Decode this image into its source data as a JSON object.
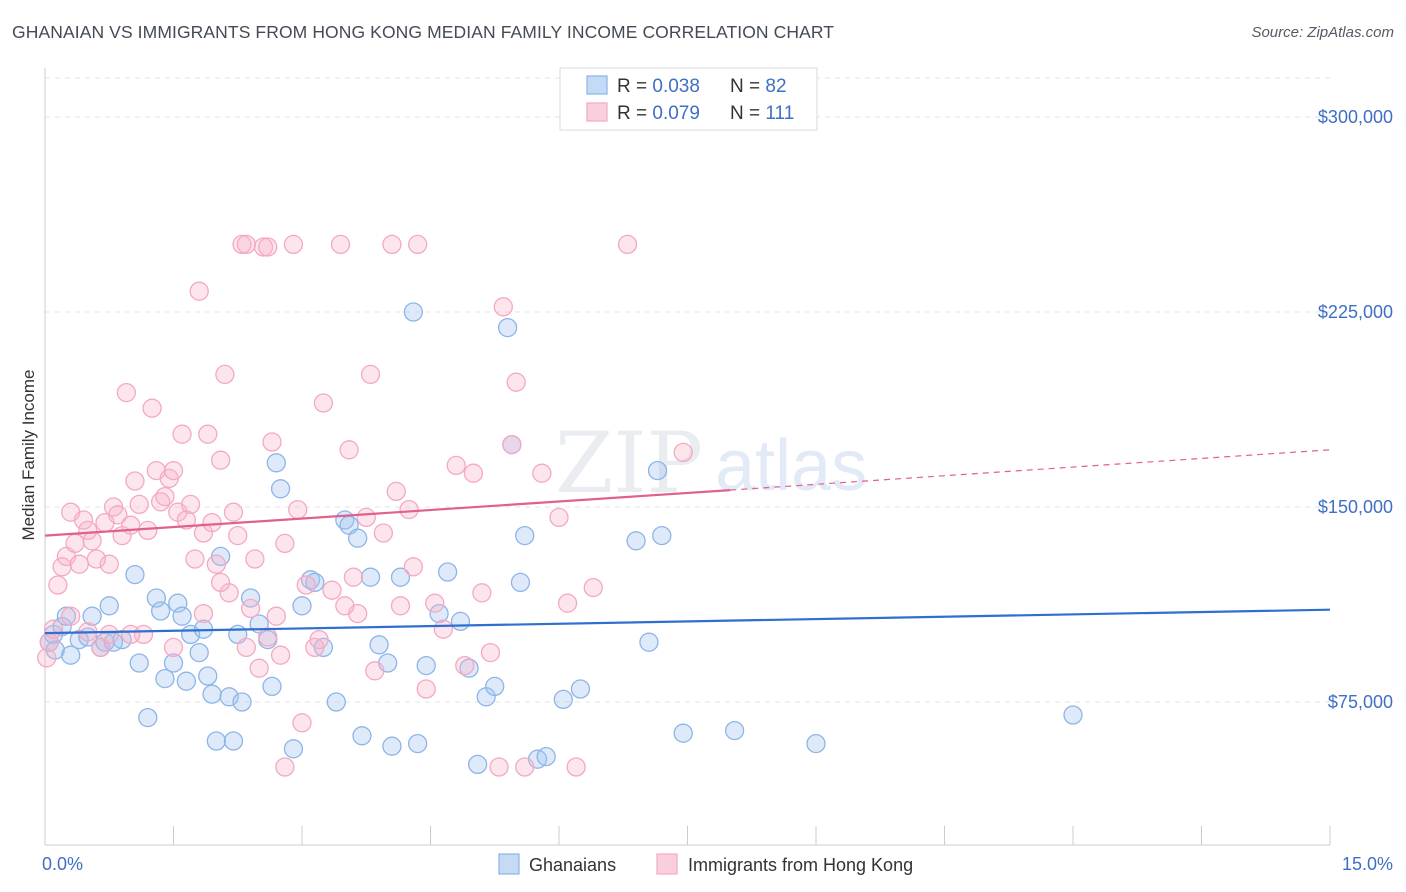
{
  "header": {
    "title": "GHANAIAN VS IMMIGRANTS FROM HONG KONG MEDIAN FAMILY INCOME CORRELATION CHART",
    "source": "Source: ZipAtlas.com"
  },
  "watermark": {
    "zip": "ZIP",
    "atlas": "atlas"
  },
  "chart_data": {
    "type": "scatter",
    "xlabel": "",
    "ylabel": "Median Family Income",
    "xlim": [
      0,
      15
    ],
    "ylim": [
      20000,
      315000
    ],
    "x_tick_labels": [
      "0.0%",
      "15.0%"
    ],
    "y_ticks": [
      {
        "value": 75000,
        "label": "$75,000"
      },
      {
        "value": 150000,
        "label": "$150,000"
      },
      {
        "value": 225000,
        "label": "$225,000"
      },
      {
        "value": 300000,
        "label": "$300,000"
      }
    ],
    "legend": {
      "placement": "top-center",
      "rows": [
        {
          "r_label": "R = ",
          "r_value": "0.038",
          "n_label": "N = ",
          "n_value": "82"
        },
        {
          "r_label": "R = ",
          "r_value": "0.079",
          "n_label": "N = ",
          "n_value": "111"
        }
      ]
    },
    "series": [
      {
        "name": "Ghanaians",
        "color": "#8db5e8",
        "trend_color": "#2f6fcf",
        "trend": {
          "x": [
            0,
            15
          ],
          "y": [
            101500,
            110500
          ]
        },
        "points": [
          [
            0.05,
            98000
          ],
          [
            0.1,
            101000
          ],
          [
            0.12,
            95000
          ],
          [
            0.2,
            104000
          ],
          [
            0.25,
            108000
          ],
          [
            0.3,
            93000
          ],
          [
            0.4,
            99000
          ],
          [
            0.5,
            100000
          ],
          [
            0.55,
            108000
          ],
          [
            0.65,
            96000
          ],
          [
            0.7,
            98000
          ],
          [
            0.75,
            112000
          ],
          [
            0.8,
            98000
          ],
          [
            0.9,
            99000
          ],
          [
            1.05,
            124000
          ],
          [
            1.1,
            90000
          ],
          [
            1.2,
            69000
          ],
          [
            1.3,
            115000
          ],
          [
            1.35,
            110000
          ],
          [
            1.4,
            84000
          ],
          [
            1.5,
            90000
          ],
          [
            1.55,
            113000
          ],
          [
            1.6,
            108000
          ],
          [
            1.65,
            83000
          ],
          [
            1.7,
            101000
          ],
          [
            1.8,
            94000
          ],
          [
            1.85,
            103000
          ],
          [
            1.9,
            85000
          ],
          [
            1.95,
            78000
          ],
          [
            2.0,
            60000
          ],
          [
            2.05,
            131000
          ],
          [
            2.15,
            77000
          ],
          [
            2.2,
            60000
          ],
          [
            2.25,
            101000
          ],
          [
            2.3,
            75000
          ],
          [
            2.4,
            115000
          ],
          [
            2.5,
            105000
          ],
          [
            2.6,
            99000
          ],
          [
            2.65,
            81000
          ],
          [
            2.7,
            167000
          ],
          [
            2.75,
            157000
          ],
          [
            2.9,
            57000
          ],
          [
            3.0,
            112000
          ],
          [
            3.1,
            122000
          ],
          [
            3.15,
            121000
          ],
          [
            3.25,
            96000
          ],
          [
            3.4,
            75000
          ],
          [
            3.5,
            145000
          ],
          [
            3.55,
            143000
          ],
          [
            3.65,
            138000
          ],
          [
            3.7,
            62000
          ],
          [
            3.8,
            123000
          ],
          [
            3.9,
            97000
          ],
          [
            4.0,
            90000
          ],
          [
            4.05,
            58000
          ],
          [
            4.15,
            123000
          ],
          [
            4.3,
            225000
          ],
          [
            4.35,
            59000
          ],
          [
            4.45,
            89000
          ],
          [
            4.6,
            109000
          ],
          [
            4.7,
            125000
          ],
          [
            4.85,
            106000
          ],
          [
            4.95,
            88000
          ],
          [
            5.05,
            51000
          ],
          [
            5.15,
            77000
          ],
          [
            5.25,
            81000
          ],
          [
            5.4,
            219000
          ],
          [
            5.45,
            174000
          ],
          [
            5.55,
            121000
          ],
          [
            5.6,
            139000
          ],
          [
            5.75,
            53000
          ],
          [
            5.85,
            54000
          ],
          [
            6.05,
            76000
          ],
          [
            6.25,
            80000
          ],
          [
            6.9,
            137000
          ],
          [
            7.05,
            98000
          ],
          [
            7.15,
            164000
          ],
          [
            7.2,
            139000
          ],
          [
            7.45,
            63000
          ],
          [
            8.05,
            64000
          ],
          [
            9.0,
            59000
          ],
          [
            12.0,
            70000
          ]
        ]
      },
      {
        "name": "Immigrants from Hong Kong",
        "color": "#f4a9c1",
        "trend_color": "#e0608e",
        "trend": {
          "x": [
            0,
            8.0
          ],
          "y": [
            139000,
            156500
          ]
        },
        "trend_extension": {
          "x": [
            8.0,
            15
          ],
          "y": [
            156500,
            172000
          ]
        },
        "points": [
          [
            0.02,
            92000
          ],
          [
            0.05,
            98000
          ],
          [
            0.1,
            103000
          ],
          [
            0.15,
            120000
          ],
          [
            0.2,
            127000
          ],
          [
            0.25,
            131000
          ],
          [
            0.3,
            148000
          ],
          [
            0.35,
            136000
          ],
          [
            0.4,
            128000
          ],
          [
            0.45,
            145000
          ],
          [
            0.5,
            141000
          ],
          [
            0.55,
            137000
          ],
          [
            0.6,
            130000
          ],
          [
            0.65,
            96000
          ],
          [
            0.7,
            144000
          ],
          [
            0.75,
            128000
          ],
          [
            0.8,
            150000
          ],
          [
            0.85,
            147000
          ],
          [
            0.9,
            139000
          ],
          [
            0.95,
            194000
          ],
          [
            1.0,
            143000
          ],
          [
            1.05,
            160000
          ],
          [
            1.1,
            151000
          ],
          [
            1.15,
            101000
          ],
          [
            1.2,
            141000
          ],
          [
            1.25,
            188000
          ],
          [
            1.3,
            164000
          ],
          [
            1.35,
            152000
          ],
          [
            1.4,
            154000
          ],
          [
            1.45,
            161000
          ],
          [
            1.5,
            164000
          ],
          [
            1.55,
            148000
          ],
          [
            1.6,
            178000
          ],
          [
            1.65,
            145000
          ],
          [
            1.7,
            151000
          ],
          [
            1.75,
            130000
          ],
          [
            1.8,
            233000
          ],
          [
            1.85,
            140000
          ],
          [
            1.9,
            178000
          ],
          [
            1.95,
            144000
          ],
          [
            2.0,
            128000
          ],
          [
            2.05,
            168000
          ],
          [
            2.1,
            201000
          ],
          [
            2.15,
            117000
          ],
          [
            2.2,
            148000
          ],
          [
            2.25,
            139000
          ],
          [
            2.3,
            251000
          ],
          [
            2.35,
            96000
          ],
          [
            2.4,
            111000
          ],
          [
            2.45,
            130000
          ],
          [
            2.5,
            88000
          ],
          [
            2.55,
            250000
          ],
          [
            2.6,
            100000
          ],
          [
            2.65,
            175000
          ],
          [
            2.7,
            108000
          ],
          [
            2.75,
            93000
          ],
          [
            2.8,
            136000
          ],
          [
            2.9,
            251000
          ],
          [
            2.95,
            149000
          ],
          [
            3.0,
            67000
          ],
          [
            3.05,
            120000
          ],
          [
            3.15,
            96000
          ],
          [
            3.25,
            190000
          ],
          [
            3.35,
            118000
          ],
          [
            3.45,
            251000
          ],
          [
            3.55,
            172000
          ],
          [
            3.6,
            123000
          ],
          [
            3.65,
            109000
          ],
          [
            3.75,
            146000
          ],
          [
            3.8,
            201000
          ],
          [
            3.85,
            87000
          ],
          [
            3.95,
            140000
          ],
          [
            4.05,
            251000
          ],
          [
            4.1,
            156000
          ],
          [
            4.15,
            112000
          ],
          [
            4.25,
            149000
          ],
          [
            4.35,
            251000
          ],
          [
            4.45,
            80000
          ],
          [
            4.55,
            113000
          ],
          [
            4.65,
            103000
          ],
          [
            4.8,
            166000
          ],
          [
            4.9,
            89000
          ],
          [
            5.0,
            163000
          ],
          [
            5.1,
            117000
          ],
          [
            5.2,
            94000
          ],
          [
            5.3,
            50000
          ],
          [
            5.35,
            227000
          ],
          [
            5.45,
            174000
          ],
          [
            5.5,
            198000
          ],
          [
            5.6,
            50000
          ],
          [
            5.8,
            163000
          ],
          [
            6.0,
            146000
          ],
          [
            6.1,
            113000
          ],
          [
            6.2,
            50000
          ],
          [
            6.4,
            119000
          ],
          [
            6.8,
            251000
          ],
          [
            7.45,
            171000
          ],
          [
            2.35,
            251000
          ],
          [
            2.6,
            250000
          ],
          [
            1.0,
            101000
          ],
          [
            0.3,
            108000
          ],
          [
            0.5,
            102000
          ],
          [
            1.5,
            96000
          ],
          [
            2.8,
            50000
          ],
          [
            1.85,
            109000
          ],
          [
            3.2,
            99000
          ],
          [
            4.3,
            127000
          ],
          [
            0.75,
            101000
          ],
          [
            2.05,
            121000
          ],
          [
            3.5,
            112000
          ]
        ]
      }
    ]
  }
}
